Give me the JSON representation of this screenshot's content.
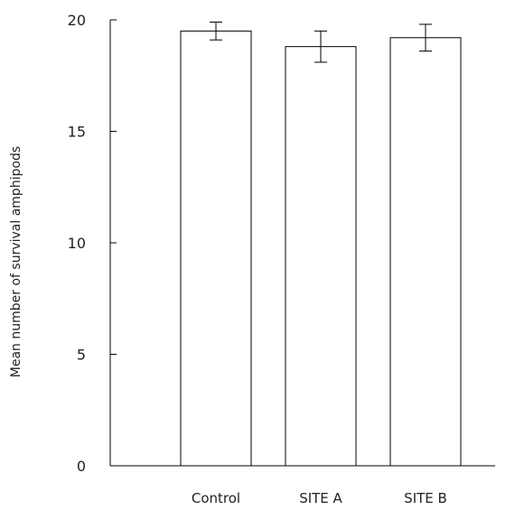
{
  "chart_data": {
    "type": "bar",
    "categories": [
      "Control",
      "SITE A",
      "SITE B"
    ],
    "values": [
      19.5,
      18.8,
      19.2
    ],
    "error": [
      0.4,
      0.7,
      0.6
    ],
    "ylabel": "Mean number of survival amphipods",
    "xlabel": "",
    "ylim": [
      0,
      20
    ],
    "yticks": [
      0,
      5,
      10,
      15,
      20
    ],
    "ytick_labels": [
      "0",
      "5",
      "10",
      "15",
      "20"
    ],
    "grid": false,
    "bar_fill": "#ffffff",
    "line_color": "#000000"
  }
}
